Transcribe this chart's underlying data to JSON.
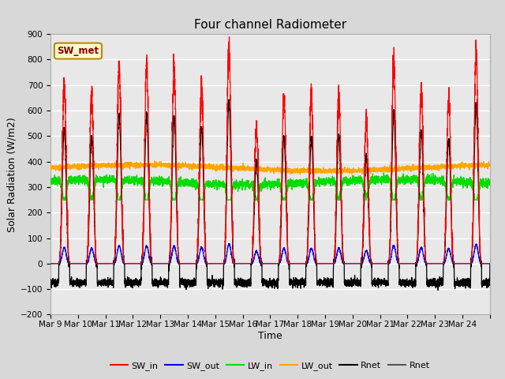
{
  "title": "Four channel Radiometer",
  "xlabel": "Time",
  "ylabel": "Solar Radiation (W/m2)",
  "ylim": [
    -200,
    900
  ],
  "yticks": [
    -200,
    -100,
    0,
    100,
    200,
    300,
    400,
    500,
    600,
    700,
    800,
    900
  ],
  "x_labels": [
    "Mar 9",
    "Mar 10",
    "Mar 11",
    "Mar 12",
    "Mar 13",
    "Mar 14",
    "Mar 15",
    "Mar 16",
    "Mar 17",
    "Mar 18",
    "Mar 19",
    "Mar 20",
    "Mar 21",
    "Mar 22",
    "Mar 23",
    "Mar 24"
  ],
  "num_days": 16,
  "annotation_text": "SW_met",
  "annotation_color": "#8B0000",
  "annotation_bg": "#FFFACD",
  "annotation_border": "#B8860B",
  "colors": {
    "SW_in": "#FF0000",
    "SW_out": "#0000FF",
    "LW_in": "#00DD00",
    "LW_out": "#FFA500",
    "Rnet": "#000000"
  },
  "legend_labels": [
    "SW_in",
    "SW_out",
    "LW_in",
    "LW_out",
    "Rnet",
    "Rnet"
  ],
  "legend_colors": [
    "#FF0000",
    "#0000FF",
    "#00DD00",
    "#FFA500",
    "#000000",
    "#555555"
  ],
  "bg_color": "#D8D8D8",
  "plot_bg": "#E8E8E8",
  "grid_color": "#FFFFFF",
  "title_fontsize": 11,
  "label_fontsize": 9,
  "tick_fontsize": 7.5
}
